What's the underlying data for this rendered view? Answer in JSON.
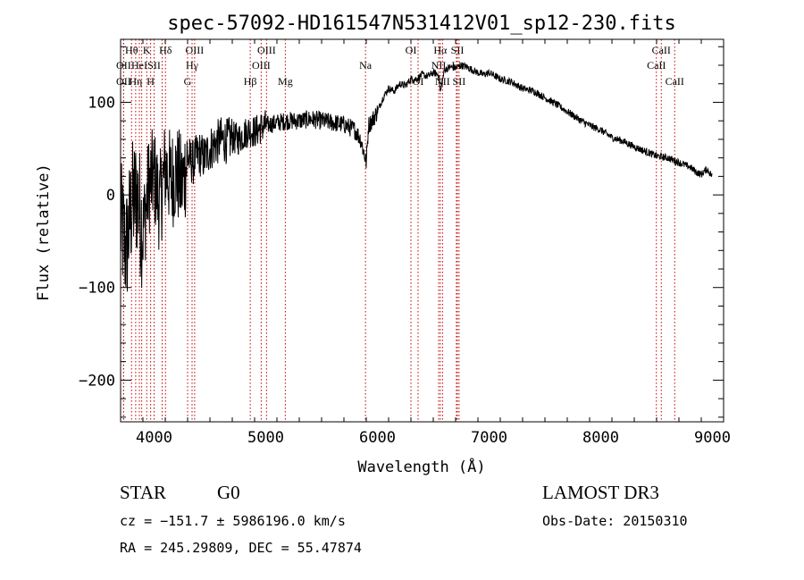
{
  "chart_data": {
    "type": "line",
    "title": "spec-57092-HD161547N531412V01_sp12-230.fits",
    "xlabel": "Wavelength (Å)",
    "ylabel": "Flux (relative)",
    "xlim": [
      3700,
      9100
    ],
    "ylim": [
      -245,
      168
    ],
    "x_ticks": [
      4000,
      5000,
      6000,
      7000,
      8000,
      9000
    ],
    "x_tick_labels": [
      "4000",
      "5000",
      "6000",
      "7000",
      "8000",
      "9000"
    ],
    "y_ticks": [
      -200,
      -100,
      0,
      100
    ],
    "y_tick_labels": [
      "−200",
      "−100",
      "0",
      "100"
    ],
    "series": [
      {
        "name": "spectrum",
        "color": "#000000",
        "x": [
          3700,
          3750,
          3800,
          3850,
          3900,
          3950,
          4000,
          4050,
          4100,
          4150,
          4200,
          4250,
          4300,
          4350,
          4400,
          4450,
          4500,
          4550,
          4600,
          4650,
          4700,
          4750,
          4800,
          4850,
          4900,
          4950,
          5000,
          5100,
          5200,
          5300,
          5400,
          5500,
          5600,
          5700,
          5800,
          5850,
          5880,
          5900,
          5920,
          5950,
          6000,
          6050,
          6100,
          6150,
          6200,
          6250,
          6300,
          6350,
          6400,
          6450,
          6500,
          6550,
          6563,
          6600,
          6650,
          6700,
          6750,
          6800,
          6850,
          6900,
          6950,
          7000,
          7100,
          7200,
          7300,
          7400,
          7500,
          7600,
          7700,
          7800,
          7900,
          8000,
          8100,
          8200,
          8300,
          8400,
          8500,
          8600,
          8700,
          8800,
          8850,
          8900,
          8950,
          9000
        ],
        "y": [
          -30,
          -60,
          -10,
          0,
          -40,
          10,
          20,
          -10,
          30,
          15,
          25,
          10,
          40,
          35,
          45,
          40,
          50,
          55,
          60,
          58,
          62,
          60,
          65,
          70,
          68,
          72,
          75,
          78,
          80,
          80,
          82,
          80,
          78,
          76,
          70,
          60,
          45,
          35,
          75,
          80,
          90,
          105,
          115,
          112,
          120,
          118,
          125,
          125,
          130,
          128,
          132,
          130,
          110,
          135,
          138,
          137,
          140,
          138,
          135,
          132,
          130,
          132,
          125,
          122,
          115,
          112,
          105,
          98,
          90,
          82,
          75,
          70,
          62,
          58,
          52,
          47,
          42,
          40,
          35,
          30,
          25,
          22,
          28,
          20
        ]
      }
    ],
    "line_markers": [
      {
        "wl": 3727,
        "label": "OII",
        "row": 2
      },
      {
        "wl": 3727,
        "label": "OII",
        "row": 3
      },
      {
        "wl": 3798,
        "label": "Hθ",
        "row": 1
      },
      {
        "wl": 3835,
        "label": "Hη",
        "row": 3
      },
      {
        "wl": 3868,
        "label": "HeI",
        "row": 2
      },
      {
        "wl": 3889,
        "label": "",
        "row": 0
      },
      {
        "wl": 3934,
        "label": "K",
        "row": 1
      },
      {
        "wl": 3969,
        "label": "H",
        "row": 3
      },
      {
        "wl": 4000,
        "label": "SII",
        "row": 2
      },
      {
        "wl": 4072,
        "label": "",
        "row": 0
      },
      {
        "wl": 4102,
        "label": "Hδ",
        "row": 1
      },
      {
        "wl": 4300,
        "label": "G",
        "row": 3
      },
      {
        "wl": 4340,
        "label": "Hγ",
        "row": 2
      },
      {
        "wl": 4363,
        "label": "OIII",
        "row": 1
      },
      {
        "wl": 4861,
        "label": "Hβ",
        "row": 3
      },
      {
        "wl": 4959,
        "label": "OIII",
        "row": 2
      },
      {
        "wl": 5007,
        "label": "OIII",
        "row": 1
      },
      {
        "wl": 5175,
        "label": "Mg",
        "row": 3
      },
      {
        "wl": 5893,
        "label": "Na",
        "row": 2
      },
      {
        "wl": 6300,
        "label": "OI",
        "row": 1
      },
      {
        "wl": 6364,
        "label": "OI",
        "row": 3
      },
      {
        "wl": 6548,
        "label": "NII",
        "row": 2
      },
      {
        "wl": 6563,
        "label": "Hα",
        "row": 1
      },
      {
        "wl": 6583,
        "label": "NII",
        "row": 3
      },
      {
        "wl": 6707,
        "label": "Li",
        "row": 2
      },
      {
        "wl": 6716,
        "label": "SII",
        "row": 1
      },
      {
        "wl": 6731,
        "label": "SII",
        "row": 3
      },
      {
        "wl": 8498,
        "label": "CaII",
        "row": 2
      },
      {
        "wl": 8542,
        "label": "CaII",
        "row": 1
      },
      {
        "wl": 8662,
        "label": "CaII",
        "row": 3
      }
    ]
  },
  "footer": {
    "object_type": "STAR",
    "subclass": "G0",
    "survey": "LAMOST DR3",
    "velocity": "cz = −151.7 ± 5986196.0 km/s",
    "obs_date": "Obs-Date: 20150310",
    "coords": "RA = 245.29809, DEC =  55.47874"
  }
}
